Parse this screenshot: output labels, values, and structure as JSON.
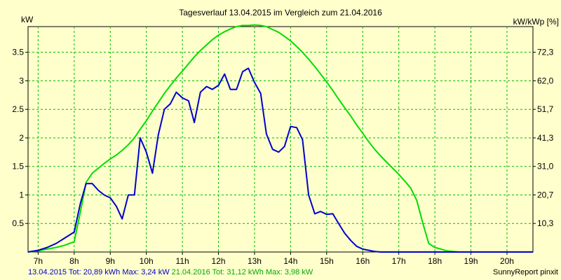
{
  "chart_data": {
    "type": "line",
    "title": "Tagesverlauf 13.04.2015 im Vergleich zum 21.04.2016",
    "ylabel_left": "kW",
    "ylabel_right": "kW/kWp [%]",
    "x_ticks": [
      "7h",
      "8h",
      "9h",
      "10h",
      "11h",
      "12h",
      "13h",
      "14h",
      "15h",
      "16h",
      "17h",
      "18h",
      "19h",
      "20h"
    ],
    "x_tick_values": [
      7,
      8,
      9,
      10,
      11,
      12,
      13,
      14,
      15,
      16,
      17,
      18,
      19,
      20
    ],
    "xlim": [
      6.72,
      20.72
    ],
    "ylim": [
      0,
      3.95
    ],
    "y_ticks_left": [
      "0.5",
      "1",
      "1.5",
      "2",
      "2.5",
      "3",
      "3.5"
    ],
    "y_tick_values": [
      0.5,
      1,
      1.5,
      2,
      2.5,
      3,
      3.5
    ],
    "y_ticks_right": [
      "10,3",
      "20,7",
      "31,0",
      "41,3",
      "51,7",
      "62,0",
      "72,3"
    ],
    "grid": true,
    "series": [
      {
        "name": "13.04.2015",
        "color": "#0000cc",
        "x": [
          6.72,
          7.0,
          7.25,
          7.5,
          7.75,
          8.0,
          8.17,
          8.33,
          8.5,
          8.67,
          8.83,
          9.0,
          9.17,
          9.33,
          9.5,
          9.67,
          9.83,
          10.0,
          10.17,
          10.33,
          10.5,
          10.67,
          10.83,
          11.0,
          11.17,
          11.33,
          11.5,
          11.67,
          11.83,
          12.0,
          12.17,
          12.33,
          12.5,
          12.67,
          12.83,
          13.0,
          13.17,
          13.33,
          13.5,
          13.67,
          13.83,
          14.0,
          14.17,
          14.33,
          14.5,
          14.67,
          14.83,
          15.0,
          15.17,
          15.33,
          15.5,
          15.67,
          15.83,
          16.0,
          16.17,
          16.33,
          16.5,
          16.67,
          16.83,
          17.0,
          17.17,
          17.33,
          17.5,
          17.67,
          17.83,
          18.0,
          18.17,
          18.33,
          18.5,
          18.67,
          18.83,
          19.0,
          19.17,
          19.33,
          19.5,
          19.67,
          19.83,
          20.0,
          20.17,
          20.33,
          20.5,
          20.72
        ],
        "y": [
          0,
          0.03,
          0.08,
          0.15,
          0.25,
          0.35,
          0.85,
          1.2,
          1.2,
          1.08,
          1.0,
          0.95,
          0.8,
          0.58,
          1.0,
          1.0,
          2.0,
          1.75,
          1.38,
          2.05,
          2.5,
          2.6,
          2.8,
          2.7,
          2.65,
          2.27,
          2.8,
          2.9,
          2.85,
          2.92,
          3.12,
          2.85,
          2.85,
          3.16,
          3.22,
          2.97,
          2.78,
          2.07,
          1.8,
          1.75,
          1.85,
          2.2,
          2.18,
          1.97,
          1.0,
          0.67,
          0.71,
          0.66,
          0.67,
          0.5,
          0.33,
          0.2,
          0.1,
          0.05,
          0.03,
          0.01,
          0,
          0,
          0,
          0,
          0,
          0,
          0,
          0,
          0,
          0,
          0,
          0,
          0,
          0,
          0,
          0,
          0,
          0,
          0,
          0,
          0,
          0,
          0,
          0,
          0,
          0
        ]
      },
      {
        "name": "21.04.2016",
        "color": "#00dd00",
        "x": [
          6.72,
          7.0,
          7.25,
          7.5,
          7.75,
          8.0,
          8.17,
          8.33,
          8.5,
          8.67,
          8.83,
          9.0,
          9.17,
          9.33,
          9.5,
          9.67,
          9.83,
          10.0,
          10.17,
          10.33,
          10.5,
          10.67,
          10.83,
          11.0,
          11.17,
          11.33,
          11.5,
          11.67,
          11.83,
          12.0,
          12.17,
          12.33,
          12.5,
          12.67,
          12.83,
          13.0,
          13.17,
          13.33,
          13.5,
          13.67,
          13.83,
          14.0,
          14.17,
          14.33,
          14.5,
          14.67,
          14.83,
          15.0,
          15.17,
          15.33,
          15.5,
          15.67,
          15.83,
          16.0,
          16.17,
          16.33,
          16.5,
          16.67,
          16.83,
          17.0,
          17.17,
          17.33,
          17.5,
          17.67,
          17.83,
          18.0,
          18.17,
          18.33,
          18.5,
          18.67,
          18.83,
          19.0,
          19.17,
          19.33,
          19.5,
          19.67,
          19.83,
          20.0,
          20.17,
          20.33,
          20.5,
          20.72
        ],
        "y": [
          0,
          0.02,
          0.05,
          0.08,
          0.12,
          0.18,
          0.7,
          1.22,
          1.38,
          1.47,
          1.55,
          1.63,
          1.7,
          1.78,
          1.88,
          2.0,
          2.15,
          2.3,
          2.47,
          2.62,
          2.78,
          2.92,
          3.05,
          3.17,
          3.3,
          3.42,
          3.53,
          3.63,
          3.72,
          3.8,
          3.86,
          3.91,
          3.95,
          3.97,
          3.97,
          3.98,
          3.97,
          3.95,
          3.9,
          3.85,
          3.78,
          3.7,
          3.6,
          3.5,
          3.38,
          3.25,
          3.12,
          2.98,
          2.83,
          2.68,
          2.53,
          2.38,
          2.23,
          2.08,
          1.93,
          1.8,
          1.68,
          1.57,
          1.47,
          1.36,
          1.24,
          1.12,
          0.9,
          0.5,
          0.15,
          0.08,
          0.05,
          0.02,
          0.01,
          0,
          0,
          0,
          0,
          0,
          0,
          0,
          0,
          0,
          0,
          0,
          0,
          0
        ]
      }
    ],
    "footer": {
      "s1_label": "13.04.2015 Tot: 20,89 kWh Max: 3,24 kW",
      "s2_label": "21.04.2016 Tot: 31,12 kWh Max: 3,98 kW",
      "credit": "SunnyReport pinxit"
    }
  }
}
